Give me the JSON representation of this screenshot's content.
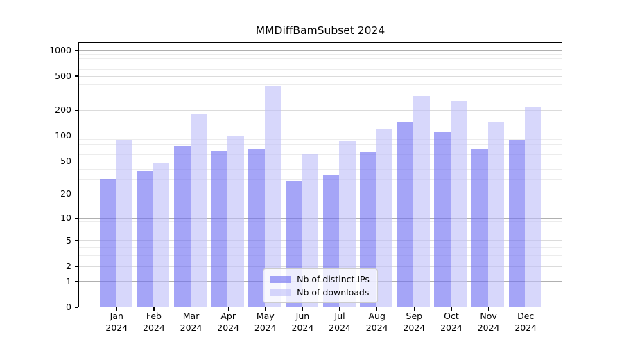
{
  "chart_data": {
    "type": "bar",
    "title": "MMDiffBamSubset 2024",
    "categories": [
      "Jan",
      "Feb",
      "Mar",
      "Apr",
      "May",
      "Jun",
      "Jul",
      "Aug",
      "Sep",
      "Oct",
      "Nov",
      "Dec"
    ],
    "x_year_label": "2024",
    "series": [
      {
        "name": "Nb of distinct IPs",
        "color": "#6e6ef2",
        "opacity": 0.62,
        "values": [
          31,
          38,
          75,
          66,
          70,
          29,
          34,
          65,
          146,
          110,
          70,
          90
        ]
      },
      {
        "name": "Nb of downloads",
        "color": "#bebef8",
        "opacity": 0.62,
        "values": [
          90,
          48,
          178,
          100,
          378,
          61,
          86,
          121,
          292,
          255,
          146,
          222
        ]
      }
    ],
    "xlabel": "",
    "ylabel": "",
    "yscale": "log10(value+1)",
    "yticks": [
      0,
      1,
      2,
      5,
      10,
      20,
      50,
      100,
      200,
      500,
      1000
    ],
    "ytick_major": [
      1,
      10,
      100,
      1000
    ],
    "ytick_mid": [
      2,
      5,
      20,
      50,
      200,
      500
    ],
    "ylim": [
      0,
      1250
    ],
    "grid": true,
    "legend_position": "lower center"
  },
  "colors": {
    "grid_major": "#b0b0b0",
    "grid_mid": "#dbdbdb",
    "grid_fine": "#ececec",
    "axis": "#000000",
    "background": "#ffffff"
  }
}
